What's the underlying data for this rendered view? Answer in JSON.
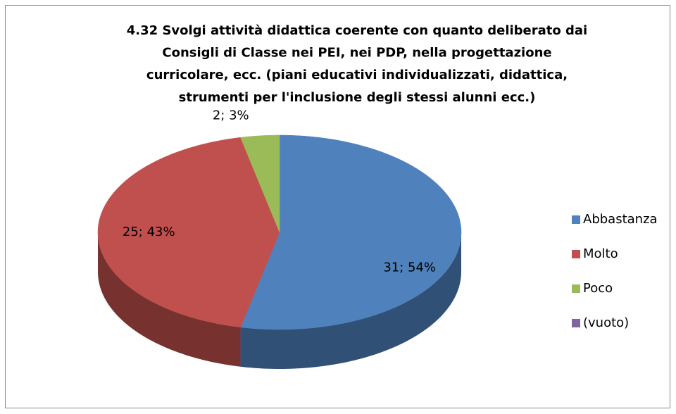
{
  "chart_data": {
    "type": "pie3d",
    "title": [
      "4.32 Svolgi attività didattica coerente con quanto deliberato dai",
      "Consigli di Classe nei PEI, nei PDP, nella progettazione",
      "curricolare, ecc. (piani educativi individualizzati, didattica,",
      "strumenti per l'inclusione degli stessi alunni ecc.)"
    ],
    "categories": [
      "Abbastanza",
      "Molto",
      "Poco",
      "(vuoto)"
    ],
    "values": [
      31,
      25,
      2,
      0
    ],
    "value_labels": [
      "31; 54%",
      "25; 43%",
      "2; 3%",
      null
    ],
    "colors": [
      "#4f81bd",
      "#c0504d",
      "#9bbb59",
      "#8064a2"
    ],
    "legend": "right"
  }
}
